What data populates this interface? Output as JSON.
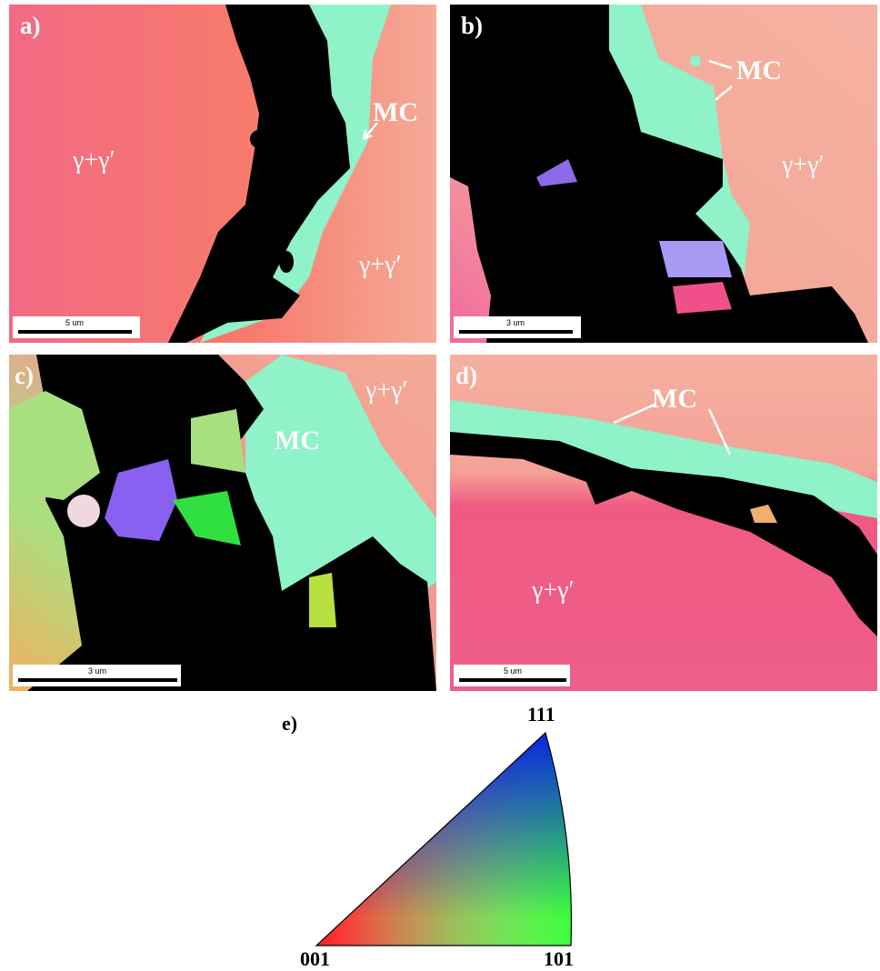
{
  "panels": [
    {
      "label": "a)",
      "annotations": [
        "MC",
        "γ+γ′",
        "γ+γ′"
      ],
      "scale_bar": "5 um"
    },
    {
      "label": "b)",
      "annotations": [
        "MC",
        "γ+γ′"
      ],
      "scale_bar": "3 um"
    },
    {
      "label": "c)",
      "annotations": [
        "γ+γ′",
        "MC"
      ],
      "scale_bar": "3 um"
    },
    {
      "label": "d)",
      "annotations": [
        "MC",
        "γ+γ′"
      ],
      "scale_bar": "5 um"
    }
  ],
  "legend": {
    "label": "e)",
    "corners": [
      "111",
      "001",
      "101"
    ]
  }
}
